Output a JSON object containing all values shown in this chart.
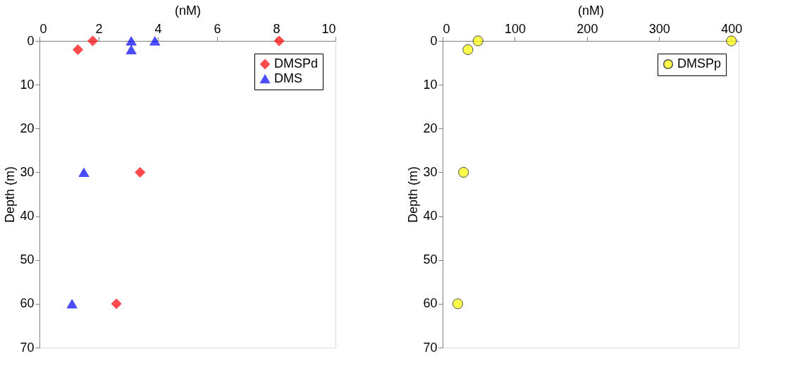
{
  "chart_data": [
    {
      "type": "scatter",
      "xlabel": "(nM)",
      "ylabel": "Depth (m)",
      "xlim": [
        0,
        10
      ],
      "xticks": [
        0,
        2,
        4,
        6,
        8,
        10
      ],
      "ylim": [
        70,
        0
      ],
      "yticks": [
        0,
        10,
        20,
        30,
        40,
        50,
        60,
        70
      ],
      "grid": false,
      "legend": "top right",
      "series": [
        {
          "name": "DMSPd",
          "color": "#ff0000",
          "marker": "diamond",
          "x": [
            1.3,
            1.8,
            8.1,
            3.4,
            2.6
          ],
          "values": [
            2,
            0,
            0,
            30,
            60
          ]
        },
        {
          "name": "DMS",
          "color": "#0000ff",
          "marker": "triangle",
          "x": [
            3.1,
            3.1,
            3.9,
            1.5,
            1.1
          ],
          "values": [
            0,
            2,
            0,
            30,
            60
          ]
        }
      ]
    },
    {
      "type": "scatter",
      "xlabel": "(nM)",
      "ylabel": "Depth (m)",
      "xlim": [
        0,
        410
      ],
      "xticks": [
        0,
        100,
        200,
        300,
        400
      ],
      "ylim": [
        70,
        0
      ],
      "yticks": [
        0,
        10,
        20,
        30,
        40,
        50,
        60,
        70
      ],
      "grid": false,
      "legend": "top right",
      "series": [
        {
          "name": "DMSPp",
          "color": "#ffff00",
          "marker": "circle",
          "x": [
            49,
            35,
            400,
            29,
            21
          ],
          "values": [
            0,
            2,
            0,
            30,
            60
          ]
        }
      ]
    }
  ]
}
